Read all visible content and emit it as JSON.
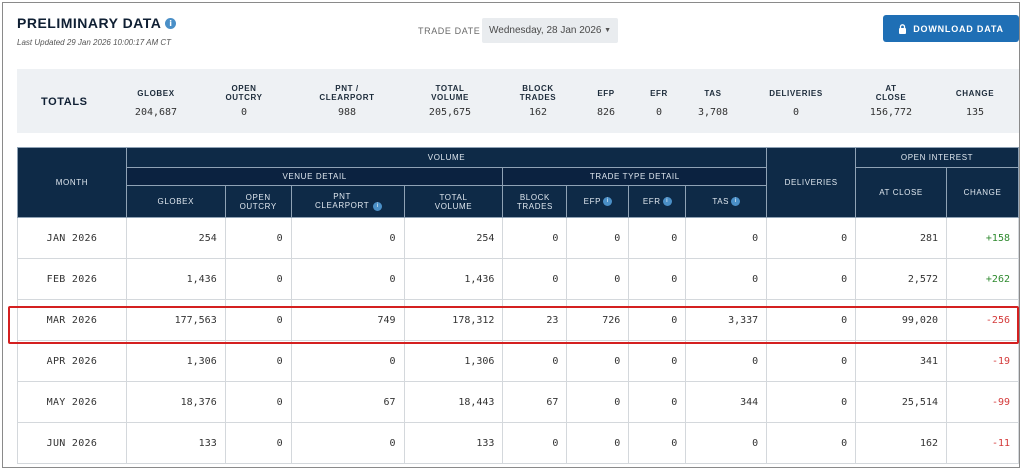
{
  "header": {
    "title": "PRELIMINARY DATA",
    "updated": "Last Updated 29 Jan 2026 10:00:17 AM CT",
    "trade_date_label": "TRADE DATE",
    "trade_date_value": "Wednesday, 28 Jan 2026",
    "download_label": "DOWNLOAD DATA"
  },
  "totals": {
    "label": "TOTALS",
    "columns": [
      {
        "h1": "GLOBEX",
        "h2": "",
        "value": "204,687"
      },
      {
        "h1": "OPEN",
        "h2": "OUTCRY",
        "value": "0"
      },
      {
        "h1": "PNT /",
        "h2": "CLEARPORT",
        "value": "988"
      },
      {
        "h1": "TOTAL",
        "h2": "VOLUME",
        "value": "205,675"
      },
      {
        "h1": "BLOCK",
        "h2": "TRADES",
        "value": "162"
      },
      {
        "h1": "EFP",
        "h2": "",
        "value": "826"
      },
      {
        "h1": "EFR",
        "h2": "",
        "value": "0"
      },
      {
        "h1": "TAS",
        "h2": "",
        "value": "3,708"
      },
      {
        "h1": "DELIVERIES",
        "h2": "",
        "value": "0"
      },
      {
        "h1": "AT",
        "h2": "CLOSE",
        "value": "156,772"
      },
      {
        "h1": "CHANGE",
        "h2": "",
        "value": "135"
      }
    ]
  },
  "table": {
    "groups": {
      "month": "MONTH",
      "volume": "VOLUME",
      "venue_detail": "VENUE DETAIL",
      "trade_type_detail": "TRADE TYPE DETAIL",
      "deliveries": "DELIVERIES",
      "open_interest": "OPEN INTEREST"
    },
    "columns": {
      "globex": "GLOBEX",
      "open_outcry": "OPEN OUTCRY",
      "pnt_clearport": "PNT CLEARPORT",
      "total_volume": "TOTAL VOLUME",
      "block_trades": "BLOCK TRADES",
      "efp": "EFP",
      "efr": "EFR",
      "tas": "TAS",
      "at_close": "AT CLOSE",
      "change": "CHANGE"
    },
    "rows": [
      {
        "month": "JAN 2026",
        "globex": "254",
        "open_outcry": "0",
        "pnt": "0",
        "total": "254",
        "block": "0",
        "efp": "0",
        "efr": "0",
        "tas": "0",
        "deliveries": "0",
        "at_close": "281",
        "change": "+158",
        "change_sign": "pos"
      },
      {
        "month": "FEB 2026",
        "globex": "1,436",
        "open_outcry": "0",
        "pnt": "0",
        "total": "1,436",
        "block": "0",
        "efp": "0",
        "efr": "0",
        "tas": "0",
        "deliveries": "0",
        "at_close": "2,572",
        "change": "+262",
        "change_sign": "pos"
      },
      {
        "month": "MAR 2026",
        "globex": "177,563",
        "open_outcry": "0",
        "pnt": "749",
        "total": "178,312",
        "block": "23",
        "efp": "726",
        "efr": "0",
        "tas": "3,337",
        "deliveries": "0",
        "at_close": "99,020",
        "change": "-256",
        "change_sign": "neg"
      },
      {
        "month": "APR 2026",
        "globex": "1,306",
        "open_outcry": "0",
        "pnt": "0",
        "total": "1,306",
        "block": "0",
        "efp": "0",
        "efr": "0",
        "tas": "0",
        "deliveries": "0",
        "at_close": "341",
        "change": "-19",
        "change_sign": "neg"
      },
      {
        "month": "MAY 2026",
        "globex": "18,376",
        "open_outcry": "0",
        "pnt": "67",
        "total": "18,443",
        "block": "67",
        "efp": "0",
        "efr": "0",
        "tas": "344",
        "deliveries": "0",
        "at_close": "25,514",
        "change": "-99",
        "change_sign": "neg"
      },
      {
        "month": "JUN 2026",
        "globex": "133",
        "open_outcry": "0",
        "pnt": "0",
        "total": "133",
        "block": "0",
        "efp": "0",
        "efr": "0",
        "tas": "0",
        "deliveries": "0",
        "at_close": "162",
        "change": "-11",
        "change_sign": "neg"
      }
    ]
  },
  "colors": {
    "header_bg": "#0e2a47",
    "accent_button": "#1f6fb5",
    "positive": "#2f8a2f",
    "negative": "#d43a3a",
    "highlight_box": "#d42020"
  }
}
